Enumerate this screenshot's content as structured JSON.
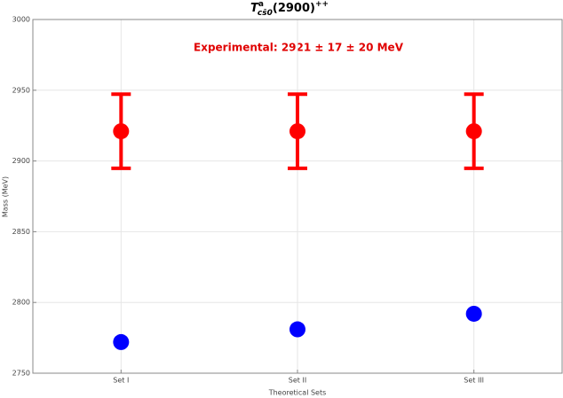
{
  "chart_data": {
    "type": "errorbar-points",
    "title": {
      "base": "T",
      "sup": "a",
      "sub": "cs̄0",
      "rest": "(2900)",
      "rest_sup": "++"
    },
    "annotation": "Experimental: 2921 ± 17 ± 20 MeV",
    "xlabel": "Theoretical Sets",
    "ylabel": "Mass (MeV)",
    "categories": [
      "Set I",
      "Set II",
      "Set III"
    ],
    "series": [
      {
        "color": "#ff0000",
        "values": [
          2921,
          2921,
          2921
        ],
        "errors": [
          26.2,
          26.2,
          26.2
        ]
      },
      {
        "color": "#0000ff",
        "values": [
          2772,
          2781,
          2792
        ]
      }
    ],
    "ylim": [
      2750,
      3000
    ],
    "yticks": [
      2750,
      2800,
      2850,
      2900,
      2950,
      3000
    ],
    "grid": true
  }
}
